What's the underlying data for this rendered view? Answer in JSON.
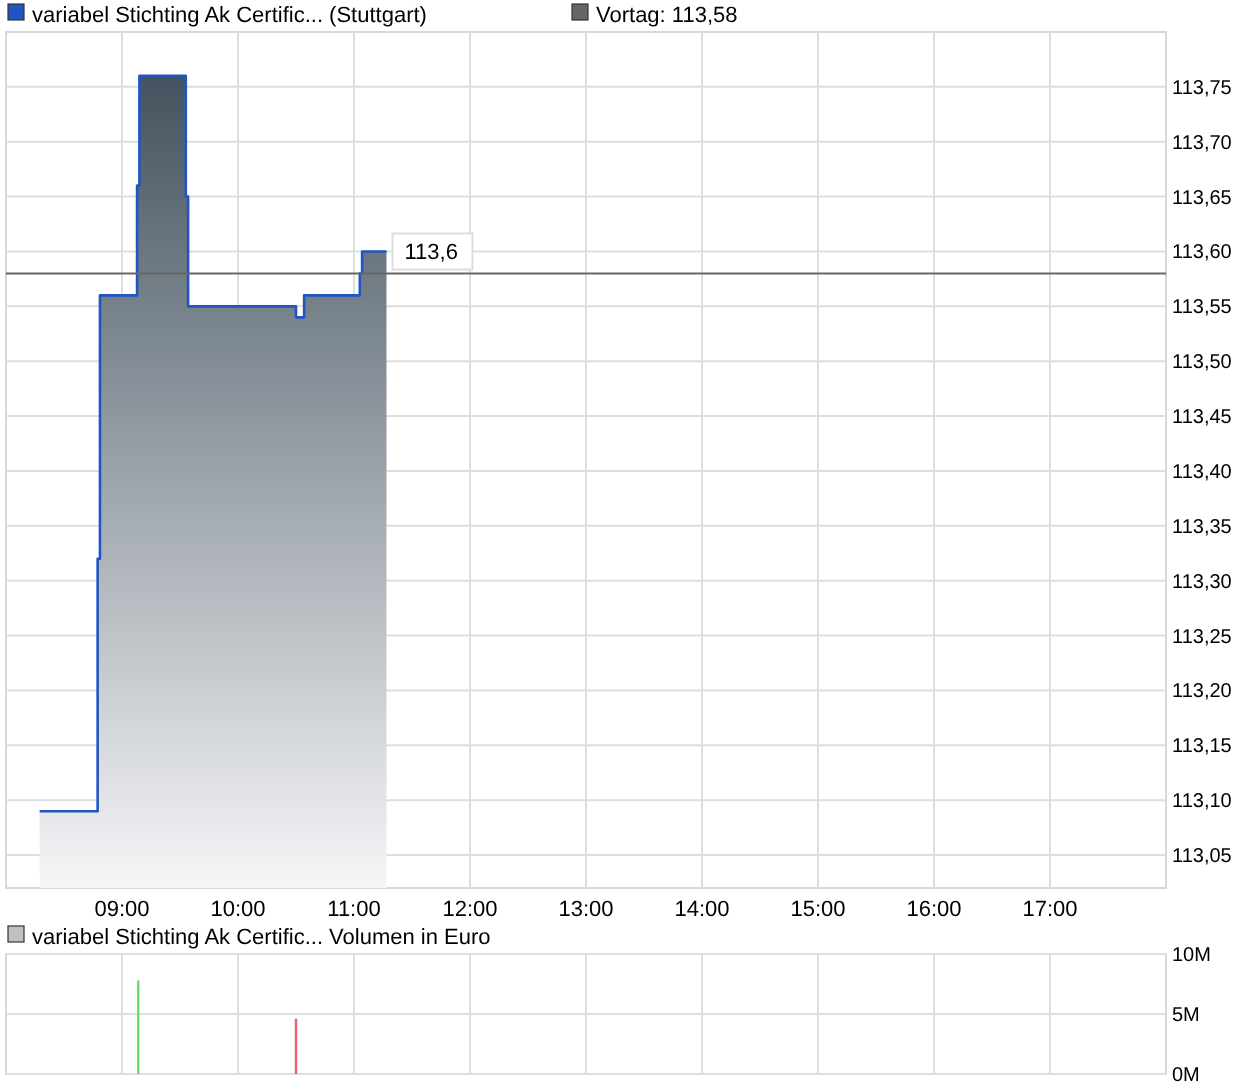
{
  "chart_data": [
    {
      "type": "area",
      "xlim": [
        8,
        18
      ],
      "ylim": [
        113.02,
        113.8
      ],
      "xticks": [
        {
          "value": 9,
          "label": "09:00"
        },
        {
          "value": 10,
          "label": "10:00"
        },
        {
          "value": 11,
          "label": "11:00"
        },
        {
          "value": 12,
          "label": "12:00"
        },
        {
          "value": 13,
          "label": "13:00"
        },
        {
          "value": 14,
          "label": "14:00"
        },
        {
          "value": 15,
          "label": "15:00"
        },
        {
          "value": 16,
          "label": "16:00"
        },
        {
          "value": 17,
          "label": "17:00"
        }
      ],
      "yticks": [
        {
          "value": 113.05,
          "label": "113,05"
        },
        {
          "value": 113.1,
          "label": "113,10"
        },
        {
          "value": 113.15,
          "label": "113,15"
        },
        {
          "value": 113.2,
          "label": "113,20"
        },
        {
          "value": 113.25,
          "label": "113,25"
        },
        {
          "value": 113.3,
          "label": "113,30"
        },
        {
          "value": 113.35,
          "label": "113,35"
        },
        {
          "value": 113.4,
          "label": "113,40"
        },
        {
          "value": 113.45,
          "label": "113,45"
        },
        {
          "value": 113.5,
          "label": "113,50"
        },
        {
          "value": 113.55,
          "label": "113,55"
        },
        {
          "value": 113.6,
          "label": "113,60"
        },
        {
          "value": 113.65,
          "label": "113,65"
        },
        {
          "value": 113.7,
          "label": "113,70"
        },
        {
          "value": 113.75,
          "label": "113,75"
        }
      ],
      "grid": true,
      "legend": "top left",
      "series": [
        {
          "name": "variabel Stichting Ak Certific... (Stuttgart)",
          "color": "#2156c0",
          "x": [
            8.29,
            8.79,
            8.79,
            8.81,
            8.81,
            9.13,
            9.13,
            9.15,
            9.15,
            9.55,
            9.55,
            9.57,
            9.57,
            10.5,
            10.5,
            10.57,
            10.57,
            11.05,
            11.05,
            11.07,
            11.07,
            11.28
          ],
          "values": [
            113.09,
            113.09,
            113.32,
            113.32,
            113.56,
            113.56,
            113.66,
            113.66,
            113.76,
            113.76,
            113.65,
            113.65,
            113.55,
            113.55,
            113.54,
            113.54,
            113.56,
            113.56,
            113.58,
            113.58,
            113.6,
            113.6
          ]
        }
      ],
      "ref_lines": [
        {
          "axis": "y",
          "value": 113.58,
          "label": "Vortag: 113,58",
          "color": "#666666"
        }
      ],
      "annotations": [
        {
          "text": "113,6",
          "x": 11.28,
          "y": 113.6
        }
      ]
    },
    {
      "type": "bar",
      "title": "variabel Stichting Ak Certific... Volumen in Euro",
      "xlim": [
        8,
        18
      ],
      "ylim": [
        0,
        10
      ],
      "xticks": [
        {
          "value": 9,
          "label": null
        },
        {
          "value": 10,
          "label": null
        },
        {
          "value": 11,
          "label": null
        },
        {
          "value": 12,
          "label": null
        },
        {
          "value": 13,
          "label": null
        },
        {
          "value": 14,
          "label": null
        },
        {
          "value": 15,
          "label": null
        },
        {
          "value": 16,
          "label": null
        },
        {
          "value": 17,
          "label": null
        }
      ],
      "yticks": [
        {
          "value": 0,
          "label": "0M"
        },
        {
          "value": 5,
          "label": "5M"
        },
        {
          "value": 10,
          "label": "10M"
        }
      ],
      "grid": true,
      "tick_labels": "y",
      "x": [
        9.14,
        10.5
      ],
      "values": [
        7.8,
        4.6
      ],
      "colors": [
        "#66dd66",
        "#e06666"
      ]
    }
  ]
}
